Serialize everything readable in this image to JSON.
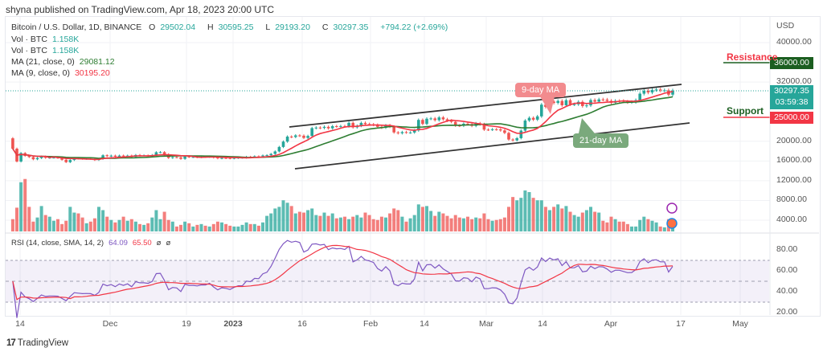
{
  "header": {
    "published": "shyna published on TradingView.com, Apr 18, 2023 20:00 UTC"
  },
  "legend": {
    "symbol": "Bitcoin / U.S. Dollar, 1D, BINANCE",
    "open_label": "O",
    "open": "29502.04",
    "high_label": "H",
    "high": "30595.25",
    "low_label": "L",
    "low": "29193.20",
    "close_label": "C",
    "close": "30297.35",
    "change": "+794.22 (+2.69%)",
    "vol1_label": "Vol · BTC",
    "vol1": "1.158K",
    "vol2_label": "Vol · BTC",
    "vol2": "1.158K",
    "ma21_label": "MA (21, close, 0)",
    "ma21": "29081.12",
    "ma9_label": "MA (9, close, 0)",
    "ma9": "30195.20",
    "rsi_label": "RSI (14, close, SMA, 14, 2)",
    "rsi": "64.09",
    "rsi_sma": "65.50",
    "rsi_extra1": "ø",
    "rsi_extra2": "ø"
  },
  "price_axis": {
    "currency": "USD",
    "ticks": [
      "40000.00",
      "32000.00",
      "20000.00",
      "16000.00",
      "12000.00",
      "8000.00",
      "4000.00"
    ],
    "last_price": "30297.35",
    "countdown": "03:59:38"
  },
  "rsi_axis": {
    "ticks": [
      "80.00",
      "60.00",
      "40.00",
      "20.00"
    ]
  },
  "time_axis": {
    "ticks": [
      "14",
      "Dec",
      "19",
      "2023",
      "16",
      "Feb",
      "14",
      "Mar",
      "14",
      "Apr",
      "17",
      "May"
    ]
  },
  "annotations": {
    "resistance": "Resistance",
    "resistance_level": "36000.00",
    "support": "Support",
    "support_level": "25000.00",
    "ma9_callout": "9-day MA",
    "ma21_callout": "21-day MA"
  },
  "colors": {
    "up": "#26a69a",
    "down": "#ef5350",
    "ma9": "#f23645",
    "ma21": "#2e7d32",
    "rsi": "#7e57c2",
    "rsi_sma": "#f23645",
    "resistance": "#1b5e20",
    "support": "#f23645"
  },
  "footer": {
    "brand": "TradingView"
  },
  "chart_data": {
    "type": "candlestick",
    "symbol": "BTCUSD",
    "interval": "1D",
    "ylim": [
      2000,
      44000
    ],
    "rsi_ylim": [
      15,
      95
    ],
    "rsi_bands": [
      30,
      50,
      70
    ],
    "first_open": 20600,
    "months": [
      {
        "month": "2022-11",
        "from_day": 8,
        "close": [
          18500,
          15900,
          17600,
          17050,
          16800,
          16350,
          16600,
          16900,
          16650,
          16700,
          16700,
          16650,
          16250,
          15770,
          16200,
          16600,
          16520,
          16450,
          16460,
          16440,
          16210,
          16440,
          17160
        ],
        "volume": [
          150,
          290,
          600,
          640,
          300,
          120,
          170,
          310,
          200,
          180,
          130,
          150,
          90,
          130,
          300,
          230,
          220,
          170,
          100,
          120,
          160,
          300,
          260
        ]
      },
      {
        "month": "2022-12",
        "from_day": 1,
        "close": [
          16980,
          17090,
          16880,
          17100,
          16970,
          17090,
          16840,
          17220,
          17130,
          17130,
          17090,
          17210,
          17780,
          17800,
          17360,
          16630,
          16780,
          16740,
          16440,
          16900,
          16820,
          16820,
          16780,
          16840,
          16830,
          16920,
          16710,
          16540,
          16630,
          16600,
          16540
        ],
        "volume": [
          180,
          140,
          110,
          140,
          180,
          130,
          150,
          120,
          90,
          80,
          100,
          170,
          260,
          150,
          240,
          140,
          120,
          60,
          80,
          120,
          100,
          60,
          80,
          90,
          70,
          60,
          90,
          120,
          110,
          90,
          70
        ]
      },
      {
        "month": "2023-01",
        "from_day": 1,
        "close": [
          16620,
          16680,
          16680,
          16850,
          16830,
          16950,
          16940,
          17120,
          17180,
          17440,
          17940,
          18850,
          19930,
          20950,
          20870,
          21190,
          21130,
          20680,
          21080,
          22670,
          22780,
          22710,
          22920,
          22630,
          23060,
          23010,
          23080,
          23030,
          23740,
          22830,
          23130
        ],
        "volume": [
          60,
          60,
          80,
          110,
          90,
          90,
          70,
          110,
          190,
          220,
          280,
          300,
          380,
          350,
          310,
          220,
          240,
          230,
          260,
          280,
          200,
          190,
          230,
          190,
          220,
          160,
          170,
          180,
          150,
          180,
          200
        ]
      },
      {
        "month": "2023-02",
        "from_day": 1,
        "close": [
          23730,
          23490,
          23430,
          23330,
          22930,
          22760,
          23240,
          22960,
          21800,
          21630,
          21860,
          21780,
          21780,
          22200,
          24330,
          23520,
          24570,
          24630,
          24280,
          24840,
          24450,
          24190,
          23940,
          23190,
          23160,
          23550,
          23490,
          23130
        ],
        "volume": [
          170,
          230,
          200,
          150,
          140,
          180,
          170,
          220,
          280,
          260,
          180,
          120,
          160,
          200,
          330,
          300,
          310,
          250,
          190,
          240,
          220,
          190,
          160,
          200,
          170,
          160,
          180,
          150
        ]
      },
      {
        "month": "2023-03",
        "from_day": 1,
        "close": [
          23640,
          23470,
          22360,
          22350,
          22430,
          22410,
          22200,
          21700,
          20360,
          20190,
          20630,
          22160,
          24200,
          24750,
          24380,
          25050,
          27420,
          26970,
          28040,
          27790,
          28170,
          27300,
          28330,
          27480,
          27490,
          27990,
          27140,
          27270,
          28350,
          28030,
          28480
        ],
        "volume": [
          170,
          160,
          220,
          150,
          130,
          140,
          150,
          170,
          300,
          420,
          380,
          410,
          500,
          480,
          410,
          380,
          380,
          300,
          260,
          300,
          330,
          280,
          310,
          240,
          200,
          180,
          230,
          260,
          300,
          240,
          230
        ]
      },
      {
        "month": "2023-04",
        "from_day": 1,
        "close": [
          28450,
          28200,
          27810,
          28180,
          28170,
          28040,
          27920,
          27950,
          28330,
          29650,
          30240,
          29890,
          30400,
          30490,
          30320,
          30320,
          29450,
          30297.35
        ],
        "volume": [
          130,
          110,
          180,
          150,
          120,
          120,
          90,
          60,
          60,
          140,
          180,
          150,
          130,
          110,
          60,
          50,
          150,
          120
        ]
      }
    ]
  }
}
